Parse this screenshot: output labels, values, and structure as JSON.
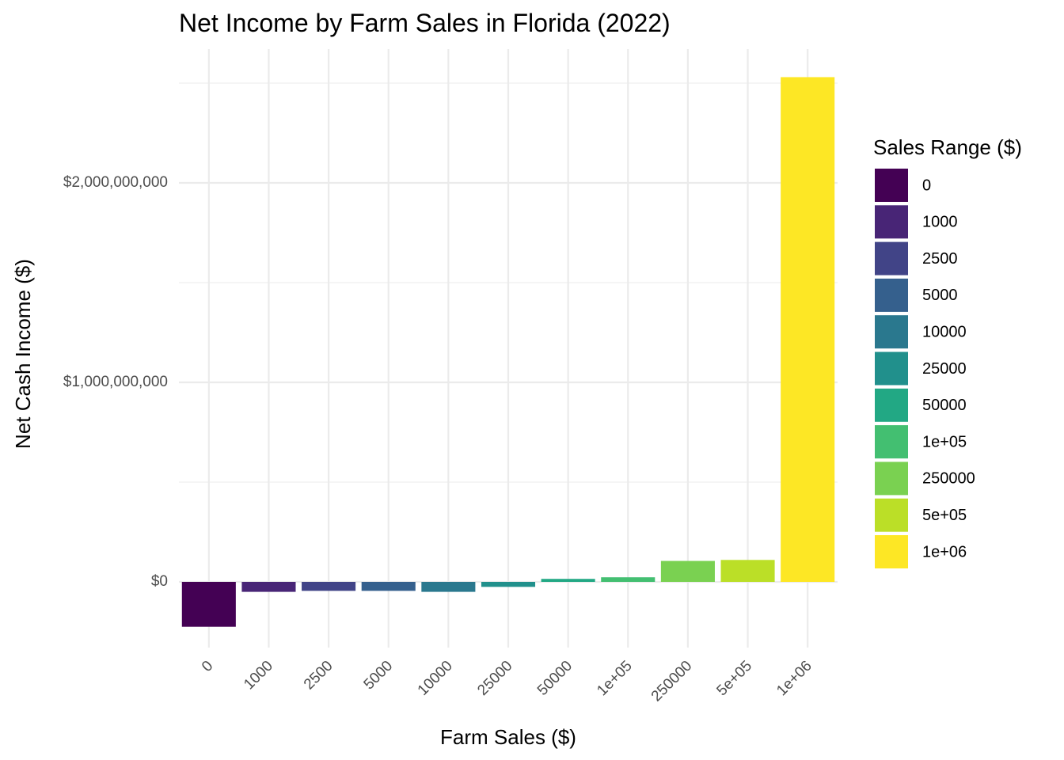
{
  "chart_data": {
    "type": "bar",
    "title": "Net Income by Farm Sales in Florida (2022)",
    "xlabel": "Farm Sales ($)",
    "ylabel": "Net Cash Income ($)",
    "categories": [
      "0",
      "1000",
      "2500",
      "5000",
      "10000",
      "25000",
      "50000",
      "1e+05",
      "250000",
      "5e+05",
      "1e+06"
    ],
    "values": [
      -225000000,
      -50000000,
      -45000000,
      -45000000,
      -50000000,
      -25000000,
      15000000,
      23000000,
      105000000,
      110000000,
      2530000000
    ],
    "colors": [
      "#440154",
      "#482576",
      "#414487",
      "#35608D",
      "#2A788E",
      "#21908C",
      "#22A884",
      "#43BF71",
      "#7AD151",
      "#BBDF27",
      "#FDE725"
    ],
    "ylim": [
      -325000000,
      2650000000
    ],
    "yticks": [
      0,
      1000000000,
      2000000000
    ],
    "ytick_labels": [
      "$0",
      "$1,000,000,000",
      "$2,000,000,000"
    ],
    "x_tick_rotation_deg": 45,
    "grid": true,
    "legend": {
      "title": "Sales Range ($)",
      "placement": "right",
      "entries": [
        "0",
        "1000",
        "2500",
        "5000",
        "10000",
        "25000",
        "50000",
        "1e+05",
        "250000",
        "5e+05",
        "1e+06"
      ]
    }
  }
}
